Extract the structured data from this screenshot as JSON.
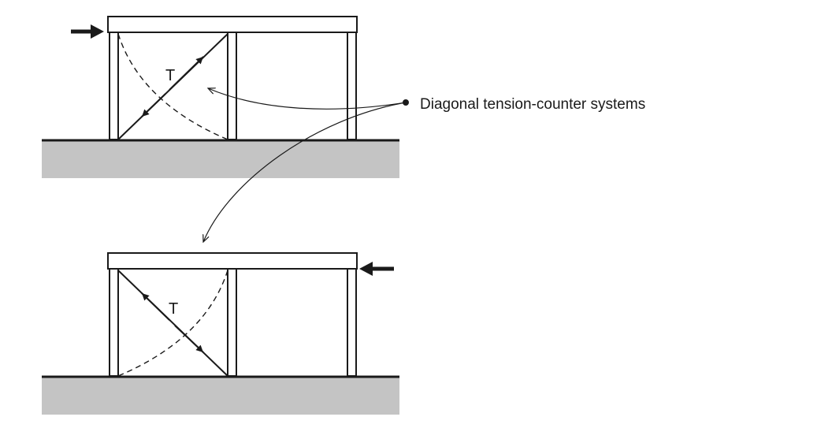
{
  "diagram": {
    "callout_label": "Diagonal tension-counter systems",
    "top_frame": {
      "tension_label": "T",
      "load_direction": "right"
    },
    "bottom_frame": {
      "tension_label": "T",
      "load_direction": "left"
    },
    "colors": {
      "ground": "#c4c4c4",
      "line": "#1a1a1a",
      "background": "#ffffff"
    }
  }
}
